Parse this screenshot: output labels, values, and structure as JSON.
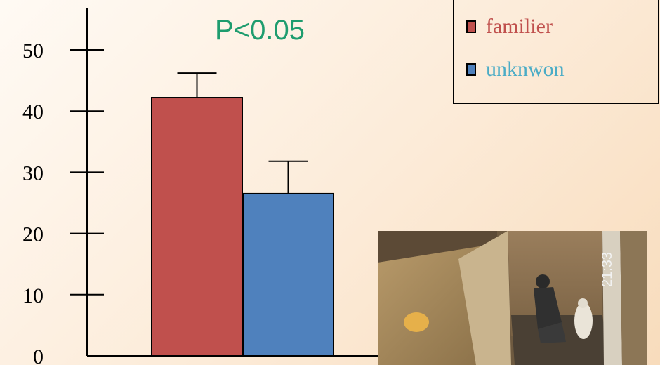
{
  "chart_data": {
    "type": "bar",
    "categories": [
      "familier",
      "unknwon"
    ],
    "values": [
      42.2,
      26.5
    ],
    "errors": [
      4.0,
      5.3
    ],
    "ylim": [
      0,
      55
    ],
    "yticks": [
      0,
      10,
      20,
      30,
      40,
      50
    ],
    "annotation": "P<0.05",
    "legend": [
      {
        "label": "familier",
        "color": "#c0504d",
        "text_color": "#c0504d"
      },
      {
        "label": "unknwon",
        "color": "#4f81bd",
        "text_color": "#4bacc6"
      }
    ],
    "grid": false,
    "legend_position": "top-right"
  },
  "colors": {
    "annotation": "#1e9c6e",
    "axis": "#000000"
  },
  "photo": {
    "description_icon": "barn-pen-photo-icon",
    "overlay_text": "21:33"
  }
}
